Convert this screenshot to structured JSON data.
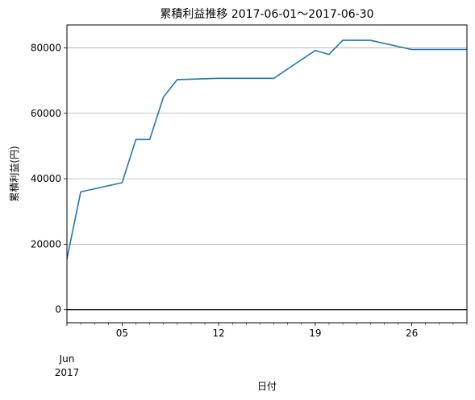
{
  "chart_data": {
    "type": "line",
    "title": "累積利益推移  2017-06-01〜2017-06-30",
    "xlabel": "日付",
    "ylabel": "累積利益(円)",
    "x_month_label": "Jun",
    "x_year_label": "2017",
    "xlim": [
      "2017-06-01",
      "2017-06-30"
    ],
    "ylim": [
      -4000,
      87000
    ],
    "x_ticks": [
      {
        "date": "2017-06-05",
        "label": "05"
      },
      {
        "date": "2017-06-12",
        "label": "12"
      },
      {
        "date": "2017-06-19",
        "label": "19"
      },
      {
        "date": "2017-06-26",
        "label": "26"
      }
    ],
    "y_ticks": [
      0,
      20000,
      40000,
      60000,
      80000
    ],
    "grid": "horizontal",
    "line_color": "#1f77b4",
    "zero_line_color": "#000000",
    "series": [
      {
        "x": [
          "2017-06-01",
          "2017-06-02",
          "2017-06-05",
          "2017-06-06",
          "2017-06-07",
          "2017-06-08",
          "2017-06-09",
          "2017-06-12",
          "2017-06-13",
          "2017-06-14",
          "2017-06-15",
          "2017-06-16",
          "2017-06-19",
          "2017-06-20",
          "2017-06-21",
          "2017-06-22",
          "2017-06-23",
          "2017-06-26",
          "2017-06-27",
          "2017-06-28",
          "2017-06-29",
          "2017-06-30"
        ],
        "values": [
          15500,
          36000,
          38800,
          52000,
          52000,
          65000,
          70300,
          70700,
          70700,
          70700,
          70700,
          70700,
          79200,
          78000,
          82300,
          82300,
          82300,
          79500,
          79500,
          79500,
          79500,
          79500
        ]
      }
    ]
  }
}
